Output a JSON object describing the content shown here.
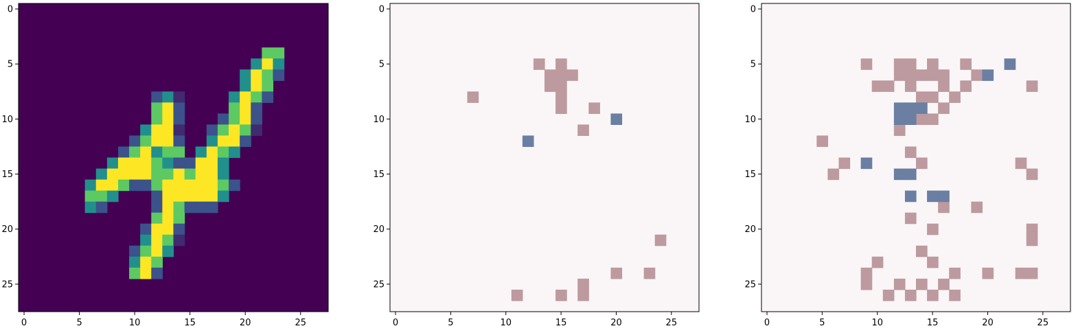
{
  "colors": {
    "viridis": [
      "#440154",
      "#3b528b",
      "#21908d",
      "#5dc963",
      "#fde725"
    ],
    "bg_light": "#faf6f7",
    "attr_pos": "#bd9aa0",
    "attr_neg": "#6a7fa2",
    "axis": "#000000"
  },
  "chart_data": [
    {
      "type": "heatmap",
      "title": "",
      "colormap": "viridis",
      "size": [
        28,
        28
      ],
      "xlim": [
        -0.5,
        27.5
      ],
      "ylim": [
        27.5,
        -0.5
      ],
      "xticks": [
        0,
        5,
        10,
        15,
        20,
        25
      ],
      "yticks": [
        0,
        5,
        10,
        15,
        20,
        25
      ],
      "cells": [
        [
          22,
          4,
          3
        ],
        [
          23,
          4,
          3
        ],
        [
          21,
          5,
          2
        ],
        [
          22,
          5,
          4
        ],
        [
          23,
          5,
          2
        ],
        [
          20,
          6,
          2
        ],
        [
          21,
          6,
          4
        ],
        [
          22,
          6,
          3
        ],
        [
          23,
          6,
          1
        ],
        [
          20,
          7,
          2
        ],
        [
          21,
          7,
          4
        ],
        [
          22,
          7,
          3
        ],
        [
          12,
          8,
          1
        ],
        [
          13,
          8,
          2
        ],
        [
          14,
          8,
          0.5
        ],
        [
          19,
          8,
          2
        ],
        [
          20,
          8,
          4
        ],
        [
          21,
          8,
          3
        ],
        [
          22,
          8,
          1
        ],
        [
          12,
          9,
          3
        ],
        [
          13,
          9,
          4
        ],
        [
          14,
          9,
          1
        ],
        [
          19,
          9,
          3
        ],
        [
          20,
          9,
          4
        ],
        [
          21,
          9,
          1
        ],
        [
          12,
          10,
          3
        ],
        [
          13,
          10,
          4
        ],
        [
          14,
          10,
          1
        ],
        [
          18,
          10,
          1
        ],
        [
          19,
          10,
          3
        ],
        [
          20,
          10,
          4
        ],
        [
          21,
          10,
          1
        ],
        [
          11,
          11,
          2
        ],
        [
          12,
          11,
          4
        ],
        [
          13,
          11,
          4
        ],
        [
          14,
          11,
          0.5
        ],
        [
          17,
          11,
          1
        ],
        [
          18,
          11,
          3
        ],
        [
          19,
          11,
          4
        ],
        [
          20,
          11,
          3
        ],
        [
          21,
          11,
          0.5
        ],
        [
          10,
          12,
          1
        ],
        [
          11,
          12,
          3
        ],
        [
          12,
          12,
          4
        ],
        [
          13,
          12,
          4
        ],
        [
          14,
          12,
          1
        ],
        [
          17,
          12,
          2
        ],
        [
          18,
          12,
          4
        ],
        [
          19,
          12,
          4
        ],
        [
          20,
          12,
          1
        ],
        [
          9,
          13,
          1
        ],
        [
          10,
          13,
          3
        ],
        [
          11,
          13,
          4
        ],
        [
          12,
          13,
          2
        ],
        [
          13,
          13,
          3
        ],
        [
          14,
          13,
          3
        ],
        [
          16,
          13,
          2
        ],
        [
          17,
          13,
          4
        ],
        [
          18,
          13,
          3
        ],
        [
          19,
          13,
          2
        ],
        [
          8,
          14,
          2
        ],
        [
          9,
          14,
          4
        ],
        [
          10,
          14,
          4
        ],
        [
          11,
          14,
          4
        ],
        [
          12,
          14,
          3
        ],
        [
          13,
          14,
          2
        ],
        [
          14,
          14,
          1
        ],
        [
          15,
          14,
          1
        ],
        [
          16,
          14,
          4
        ],
        [
          17,
          14,
          4
        ],
        [
          18,
          14,
          2
        ],
        [
          7,
          15,
          2
        ],
        [
          8,
          15,
          4
        ],
        [
          9,
          15,
          4
        ],
        [
          10,
          15,
          4
        ],
        [
          11,
          15,
          4
        ],
        [
          12,
          15,
          3
        ],
        [
          13,
          15,
          3
        ],
        [
          14,
          15,
          4
        ],
        [
          15,
          15,
          3
        ],
        [
          16,
          15,
          4
        ],
        [
          17,
          15,
          4
        ],
        [
          18,
          15,
          2
        ],
        [
          6,
          16,
          2
        ],
        [
          7,
          16,
          4
        ],
        [
          8,
          16,
          4
        ],
        [
          9,
          16,
          3
        ],
        [
          10,
          16,
          1
        ],
        [
          11,
          16,
          1
        ],
        [
          12,
          16,
          3
        ],
        [
          13,
          16,
          4
        ],
        [
          14,
          16,
          4
        ],
        [
          15,
          16,
          4
        ],
        [
          16,
          16,
          4
        ],
        [
          17,
          16,
          4
        ],
        [
          18,
          16,
          3
        ],
        [
          19,
          16,
          1
        ],
        [
          6,
          17,
          3
        ],
        [
          7,
          17,
          3
        ],
        [
          8,
          17,
          2
        ],
        [
          12,
          17,
          1
        ],
        [
          13,
          17,
          4
        ],
        [
          14,
          17,
          4
        ],
        [
          15,
          17,
          4
        ],
        [
          16,
          17,
          4
        ],
        [
          17,
          17,
          4
        ],
        [
          18,
          17,
          2
        ],
        [
          6,
          18,
          2
        ],
        [
          7,
          18,
          1
        ],
        [
          12,
          18,
          1
        ],
        [
          13,
          18,
          4
        ],
        [
          14,
          18,
          3
        ],
        [
          15,
          18,
          1
        ],
        [
          16,
          18,
          1
        ],
        [
          17,
          18,
          1
        ],
        [
          12,
          19,
          3
        ],
        [
          13,
          19,
          4
        ],
        [
          14,
          19,
          3
        ],
        [
          11,
          20,
          1
        ],
        [
          12,
          20,
          4
        ],
        [
          13,
          20,
          4
        ],
        [
          14,
          20,
          1
        ],
        [
          11,
          21,
          2
        ],
        [
          12,
          21,
          4
        ],
        [
          13,
          21,
          3
        ],
        [
          14,
          21,
          0.5
        ],
        [
          10,
          22,
          1
        ],
        [
          11,
          22,
          3
        ],
        [
          12,
          22,
          4
        ],
        [
          13,
          22,
          2
        ],
        [
          10,
          23,
          2
        ],
        [
          11,
          23,
          4
        ],
        [
          12,
          23,
          3
        ],
        [
          10,
          24,
          3
        ],
        [
          11,
          24,
          4
        ],
        [
          12,
          24,
          1
        ]
      ]
    },
    {
      "type": "heatmap",
      "title": "",
      "size": [
        28,
        28
      ],
      "xlim": [
        -0.5,
        27.5
      ],
      "ylim": [
        27.5,
        -0.5
      ],
      "xticks": [
        0,
        5,
        10,
        15,
        20,
        25
      ],
      "yticks": [
        0,
        5,
        10,
        15,
        20,
        25
      ],
      "positive_cells": [
        [
          13,
          5
        ],
        [
          15,
          5
        ],
        [
          14,
          6
        ],
        [
          15,
          6
        ],
        [
          16,
          6
        ],
        [
          14,
          7
        ],
        [
          15,
          7
        ],
        [
          7,
          8
        ],
        [
          15,
          8
        ],
        [
          15,
          9
        ],
        [
          18,
          9
        ],
        [
          17,
          11
        ],
        [
          24,
          21
        ],
        [
          20,
          24
        ],
        [
          23,
          24
        ],
        [
          17,
          25
        ],
        [
          11,
          26
        ],
        [
          15,
          26
        ],
        [
          17,
          26
        ]
      ],
      "negative_cells": [
        [
          20,
          10
        ],
        [
          12,
          12
        ]
      ]
    },
    {
      "type": "heatmap",
      "title": "",
      "size": [
        28,
        28
      ],
      "xlim": [
        -0.5,
        27.5
      ],
      "ylim": [
        27.5,
        -0.5
      ],
      "xticks": [
        0,
        5,
        10,
        15,
        20,
        25
      ],
      "yticks": [
        0,
        5,
        10,
        15,
        20,
        25
      ],
      "positive_cells": [
        [
          9,
          5
        ],
        [
          12,
          5
        ],
        [
          13,
          5
        ],
        [
          15,
          5
        ],
        [
          18,
          5
        ],
        [
          12,
          6
        ],
        [
          13,
          6
        ],
        [
          14,
          6
        ],
        [
          15,
          6
        ],
        [
          16,
          6
        ],
        [
          19,
          6
        ],
        [
          10,
          7
        ],
        [
          11,
          7
        ],
        [
          13,
          7
        ],
        [
          16,
          7
        ],
        [
          18,
          7
        ],
        [
          24,
          7
        ],
        [
          14,
          8
        ],
        [
          15,
          8
        ],
        [
          17,
          8
        ],
        [
          14,
          9
        ],
        [
          16,
          9
        ],
        [
          14,
          10
        ],
        [
          15,
          10
        ],
        [
          12,
          11
        ],
        [
          5,
          12
        ],
        [
          13,
          13
        ],
        [
          7,
          14
        ],
        [
          14,
          14
        ],
        [
          23,
          14
        ],
        [
          6,
          15
        ],
        [
          24,
          15
        ],
        [
          16,
          18
        ],
        [
          19,
          18
        ],
        [
          13,
          19
        ],
        [
          15,
          20
        ],
        [
          24,
          20
        ],
        [
          24,
          21
        ],
        [
          14,
          22
        ],
        [
          10,
          23
        ],
        [
          15,
          23
        ],
        [
          9,
          24
        ],
        [
          17,
          24
        ],
        [
          20,
          24
        ],
        [
          23,
          24
        ],
        [
          24,
          24
        ],
        [
          9,
          25
        ],
        [
          12,
          25
        ],
        [
          14,
          25
        ],
        [
          16,
          25
        ],
        [
          11,
          26
        ],
        [
          13,
          26
        ],
        [
          15,
          26
        ],
        [
          17,
          26
        ]
      ],
      "negative_cells": [
        [
          22,
          5
        ],
        [
          20,
          6
        ],
        [
          12,
          9
        ],
        [
          13,
          9
        ],
        [
          14,
          9
        ],
        [
          12,
          10
        ],
        [
          13,
          10
        ],
        [
          9,
          14
        ],
        [
          12,
          15
        ],
        [
          13,
          15
        ],
        [
          13,
          17
        ],
        [
          15,
          17
        ],
        [
          16,
          17
        ]
      ]
    }
  ]
}
